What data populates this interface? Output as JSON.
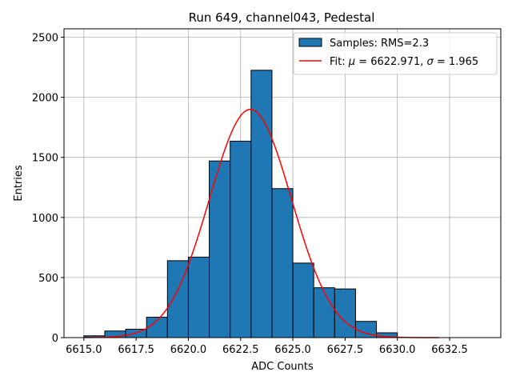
{
  "chart_data": {
    "type": "bar",
    "title": "Run 649, channel043, Pedestal",
    "xlabel": "ADC Counts",
    "ylabel": "Entries",
    "xlim": [
      6614.05,
      6634.95
    ],
    "ylim": [
      0,
      2570
    ],
    "grid": true,
    "legend_position": "top-right",
    "x_ticks": [
      6615.0,
      6617.5,
      6620.0,
      6622.5,
      6625.0,
      6627.5,
      6630.0,
      6632.5
    ],
    "x_tick_labels": [
      "6615.0",
      "6617.5",
      "6620.0",
      "6622.5",
      "6625.0",
      "6627.5",
      "6630.0",
      "6632.5"
    ],
    "y_ticks": [
      0,
      500,
      1000,
      1500,
      2000,
      2500
    ],
    "y_tick_labels": [
      "0",
      "500",
      "1000",
      "1500",
      "2000",
      "2500"
    ],
    "bin_width": 1,
    "bins": [
      {
        "start": 6615,
        "count": 15
      },
      {
        "start": 6616,
        "count": 55
      },
      {
        "start": 6617,
        "count": 70
      },
      {
        "start": 6618,
        "count": 170
      },
      {
        "start": 6619,
        "count": 640
      },
      {
        "start": 6620,
        "count": 670
      },
      {
        "start": 6621,
        "count": 1470
      },
      {
        "start": 6622,
        "count": 1635
      },
      {
        "start": 6623,
        "count": 2225
      },
      {
        "start": 6624,
        "count": 1240
      },
      {
        "start": 6625,
        "count": 620
      },
      {
        "start": 6626,
        "count": 415
      },
      {
        "start": 6627,
        "count": 405
      },
      {
        "start": 6628,
        "count": 135
      },
      {
        "start": 6629,
        "count": 40
      }
    ],
    "fit": {
      "mu": 6622.971,
      "sigma": 1.965,
      "peak": 1900,
      "x_range": [
        6615.0,
        6632.0
      ],
      "color": "#ff0000"
    },
    "series": [
      {
        "name": "Samples: RMS=2.3",
        "kind": "histogram",
        "color": "#1f77b4"
      },
      {
        "name_prefix": "Fit: ",
        "name_mu": "μ",
        "name_mid": " = 6622.971, ",
        "name_sigma": "σ",
        "name_suffix": " = 1.965",
        "kind": "line",
        "color": "#ff0000"
      }
    ]
  }
}
